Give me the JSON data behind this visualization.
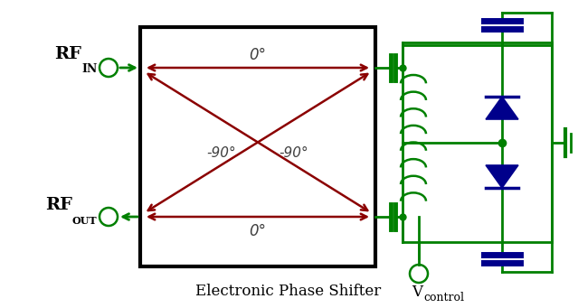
{
  "title": "Electronic Phase Shifter",
  "title_fontsize": 12,
  "green": "#008000",
  "dark_red": "#8B0000",
  "dark_blue": "#00008B",
  "black": "#000000",
  "white": "#ffffff",
  "zero_deg": "0°",
  "neg90_deg": "-90°",
  "fig_width": 6.39,
  "fig_height": 3.41,
  "dpi": 100
}
